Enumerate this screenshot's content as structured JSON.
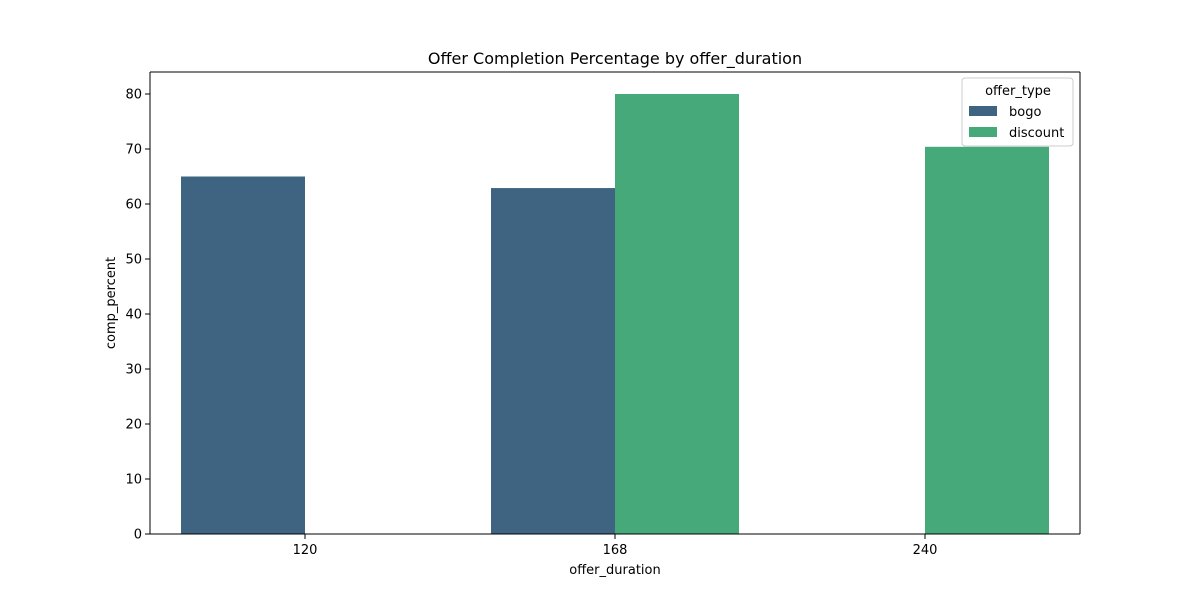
{
  "chart_data": {
    "type": "bar",
    "title": "Offer Completion Percentage by offer_duration",
    "xlabel": "offer_duration",
    "ylabel": "comp_percent",
    "categories": [
      "120",
      "168",
      "240"
    ],
    "series": [
      {
        "name": "bogo",
        "color": "#3e6482",
        "values": [
          65.0,
          62.9,
          null
        ]
      },
      {
        "name": "discount",
        "color": "#46a979",
        "values": [
          null,
          80.0,
          70.4
        ]
      }
    ],
    "ylim": [
      0,
      84
    ],
    "yticks": [
      0,
      10,
      20,
      30,
      40,
      50,
      60,
      70,
      80
    ],
    "grid": false,
    "legend": {
      "title": "offer_type",
      "placement": "top-right"
    }
  }
}
